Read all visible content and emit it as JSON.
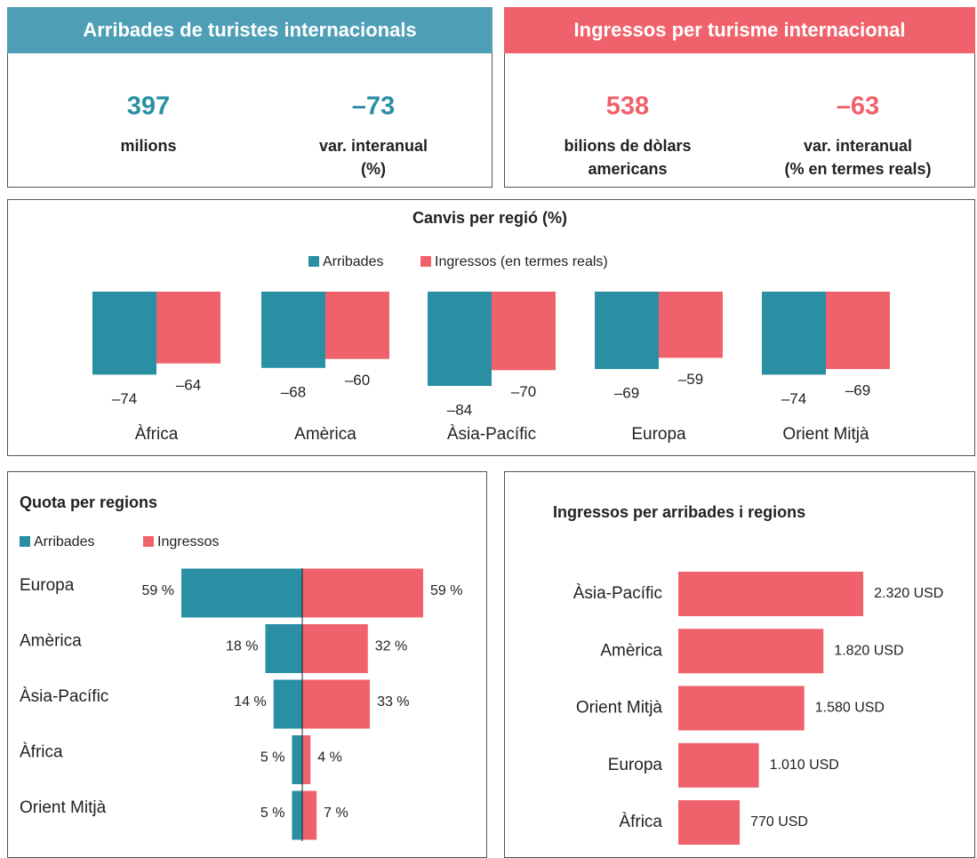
{
  "kpis": [
    {
      "title": "Arribades de turistes internacionals",
      "header_color": "#4e9fb6",
      "color": "#2a8fa3",
      "items": [
        {
          "value": "397",
          "label": [
            "milions"
          ]
        },
        {
          "value": "–73",
          "label": [
            "var. interanual",
            "(%)"
          ]
        }
      ]
    },
    {
      "title": "Ingressos per turisme internacional",
      "header_color": "#f0626b",
      "color": "#f0626b",
      "items": [
        {
          "value": "538",
          "label": [
            "bilions de dòlars",
            "americans"
          ]
        },
        {
          "value": "–63",
          "label": [
            "var. interanual",
            "(% en termes reals)"
          ]
        }
      ]
    }
  ],
  "chart_data": [
    {
      "type": "bar",
      "title": "Canvis per regió (%)",
      "categories": [
        "Àfrica",
        "Amèrica",
        "Àsia-Pacífic",
        "Europa",
        "Orient Mitjà"
      ],
      "series": [
        {
          "name": "Arribades",
          "color": "#2a8fa3",
          "values": [
            -74,
            -68,
            -84,
            -69,
            -74
          ],
          "value_labels": [
            "–74",
            "–68",
            "–84",
            "–69",
            "–74"
          ]
        },
        {
          "name": "Ingressos (en termes reals)",
          "color": "#f0626b",
          "values": [
            -64,
            -60,
            -70,
            -59,
            -69
          ],
          "value_labels": [
            "–64",
            "–60",
            "–70",
            "–59",
            "–69"
          ]
        }
      ]
    },
    {
      "type": "diverging",
      "title": "Quota per regions",
      "categories": [
        "Europa",
        "Amèrica",
        "Àsia-Pacífic",
        "Àfrica",
        "Orient Mitjà"
      ],
      "series": [
        {
          "name": "Arribades",
          "color": "#2a8fa3",
          "values": [
            59,
            18,
            14,
            5,
            5
          ],
          "value_labels": [
            "59 %",
            "18 %",
            "14 %",
            "5 %",
            "5 %"
          ]
        },
        {
          "name": "Ingressos",
          "color": "#f0626b",
          "values": [
            59,
            32,
            33,
            4,
            7
          ],
          "value_labels": [
            "59 %",
            "32 %",
            "33 %",
            "4 %",
            "7 %"
          ]
        }
      ]
    },
    {
      "type": "hbar",
      "title": "Ingressos per arribades i regions",
      "categories": [
        "Àsia-Pacífic",
        "Amèrica",
        "Orient Mitjà",
        "Europa",
        "Àfrica"
      ],
      "color": "#f0626b",
      "values": [
        2320,
        1820,
        1580,
        1010,
        770
      ],
      "value_labels": [
        "2.320 USD",
        "1.820 USD",
        "1.580 USD",
        "1.010 USD",
        "770 USD"
      ]
    }
  ]
}
